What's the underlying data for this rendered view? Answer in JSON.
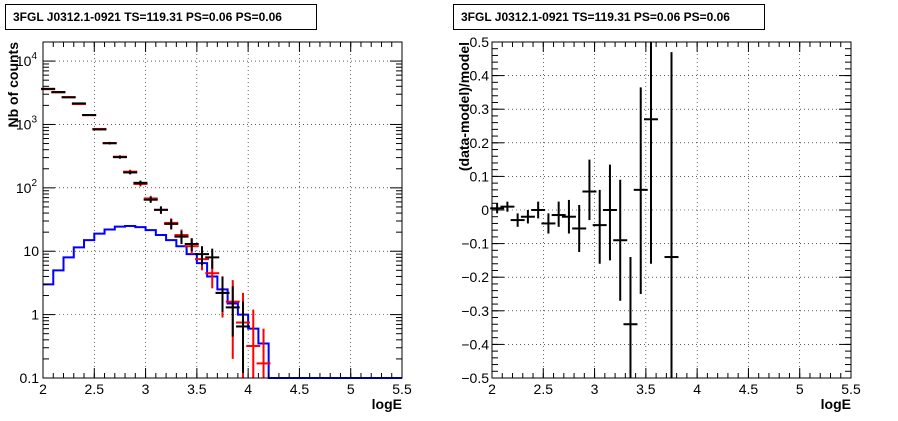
{
  "chart_data": [
    {
      "type": "line",
      "title": "3FGL J0312.1-0921 TS=119.31 PS=0.06 PS=0.06",
      "xlabel": "logE",
      "ylabel": "Nb of counts",
      "xlim": [
        2,
        5.5
      ],
      "ylim": [
        0.1,
        20000
      ],
      "yscale": "log",
      "grid": true,
      "x_ticks": [
        "2",
        "2.5",
        "3",
        "3.5",
        "4",
        "4.5",
        "5",
        "5.5"
      ],
      "y_ticks": [
        "0.1",
        "1",
        "10",
        "10^2",
        "10^3",
        "10^4"
      ],
      "series": [
        {
          "color": "#0000ff",
          "style": "histogram",
          "bin_edges": [
            2.0,
            2.1,
            2.2,
            2.3,
            2.4,
            2.5,
            2.6,
            2.7,
            2.8,
            2.9,
            3.0,
            3.1,
            3.2,
            3.3,
            3.4,
            3.5,
            3.6,
            3.7,
            3.8,
            3.9,
            4.0,
            4.1,
            4.2,
            4.3,
            4.4,
            4.5,
            4.6,
            4.7,
            4.8,
            4.9,
            5.0,
            5.1,
            5.2,
            5.3,
            5.4,
            5.5
          ],
          "values": [
            3.0,
            5.0,
            8.0,
            11.5,
            15.0,
            19.0,
            22.0,
            24.5,
            25.0,
            24.0,
            21.5,
            18.0,
            15.0,
            12.0,
            9.0,
            6.5,
            4.0,
            2.5,
            1.5,
            1.0,
            0.6,
            0.35,
            0.1,
            0.1,
            0.1,
            0.1,
            0.1,
            0.1,
            0.1,
            0.1,
            0.1,
            0.1,
            0.1,
            0.1,
            0.1
          ]
        },
        {
          "color": "#ff0000",
          "style": "points-with-errors",
          "x": [
            2.05,
            2.15,
            2.25,
            2.35,
            2.45,
            2.55,
            2.65,
            2.75,
            2.85,
            2.95,
            3.05,
            3.15,
            3.25,
            3.35,
            3.45,
            3.55,
            3.65,
            3.75,
            3.85,
            3.95,
            4.05,
            4.15
          ],
          "values": [
            3600,
            3200,
            2700,
            2100,
            1400,
            850,
            510,
            310,
            180,
            115,
            68,
            45,
            28,
            18,
            12,
            7.5,
            4.5,
            2.2,
            1.6,
            0.75,
            0.32,
            0.17
          ],
          "error_low": [
            3540,
            3145,
            2650,
            2055,
            1365,
            822,
            488,
            293,
            167,
            105,
            61,
            39,
            23,
            14,
            9,
            5,
            2.6,
            0.9,
            0.2,
            0.1,
            0.1,
            0.1
          ],
          "error_high": [
            3660,
            3255,
            2750,
            2145,
            1435,
            878,
            532,
            327,
            193,
            125,
            75,
            51,
            33,
            22,
            16,
            11,
            7,
            4,
            3.5,
            2.2,
            1.2,
            0.6
          ]
        },
        {
          "color": "#000000",
          "style": "points-with-errors",
          "x": [
            2.05,
            2.15,
            2.25,
            2.35,
            2.45,
            2.55,
            2.65,
            2.75,
            2.85,
            2.95,
            3.05,
            3.15,
            3.25,
            3.35,
            3.45,
            3.55,
            3.65,
            3.75,
            3.85,
            3.95
          ],
          "values": [
            3650,
            3250,
            2680,
            2150,
            1410,
            835,
            505,
            305,
            175,
            120,
            65,
            45,
            27,
            17,
            13,
            9,
            8,
            2.2,
            1.3,
            0.65
          ],
          "error_low": [
            3590,
            3195,
            2630,
            2105,
            1375,
            807,
            483,
            288,
            163,
            110,
            58,
            39,
            22,
            13,
            10,
            6,
            5.3,
            1.1,
            0.45,
            0.12
          ],
          "error_high": [
            3710,
            3305,
            2730,
            2195,
            1445,
            863,
            527,
            322,
            187,
            130,
            72,
            51,
            32,
            21,
            16,
            12,
            11,
            4,
            2.8,
            1.6
          ]
        }
      ]
    },
    {
      "type": "scatter",
      "title": "3FGL J0312.1-0921 TS=119.31 PS=0.06 PS=0.06",
      "xlabel": "logE",
      "ylabel": "(data-model)/model",
      "xlim": [
        2,
        5.5
      ],
      "ylim": [
        -0.5,
        0.5
      ],
      "grid": true,
      "x_ticks": [
        "2",
        "2.5",
        "3",
        "3.5",
        "4",
        "4.5",
        "5",
        "5.5"
      ],
      "y_ticks": [
        "−0.5",
        "−0.4",
        "−0.3",
        "−0.2",
        "−0.1",
        "0",
        "0.1",
        "0.2",
        "0.3",
        "0.4",
        "0.5"
      ],
      "series": [
        {
          "color": "#000000",
          "x": [
            2.05,
            2.15,
            2.25,
            2.35,
            2.45,
            2.55,
            2.65,
            2.75,
            2.85,
            2.95,
            3.05,
            3.15,
            3.25,
            3.35,
            3.45,
            3.55,
            3.75
          ],
          "values": [
            0.005,
            0.01,
            -0.03,
            -0.02,
            0.0,
            -0.04,
            -0.015,
            -0.02,
            -0.055,
            0.055,
            -0.045,
            0.0,
            -0.09,
            -0.34,
            0.06,
            0.27,
            -0.14
          ],
          "error_low": [
            -0.01,
            -0.005,
            -0.05,
            -0.04,
            -0.025,
            -0.07,
            -0.05,
            -0.07,
            -0.125,
            -0.03,
            -0.16,
            -0.15,
            -0.27,
            -0.5,
            -0.25,
            -0.16,
            -0.5
          ],
          "error_high": [
            0.02,
            0.025,
            -0.01,
            0.0,
            0.025,
            -0.01,
            0.025,
            0.03,
            0.015,
            0.15,
            0.06,
            0.135,
            0.09,
            -0.14,
            0.365,
            0.5,
            0.47
          ]
        }
      ]
    }
  ]
}
